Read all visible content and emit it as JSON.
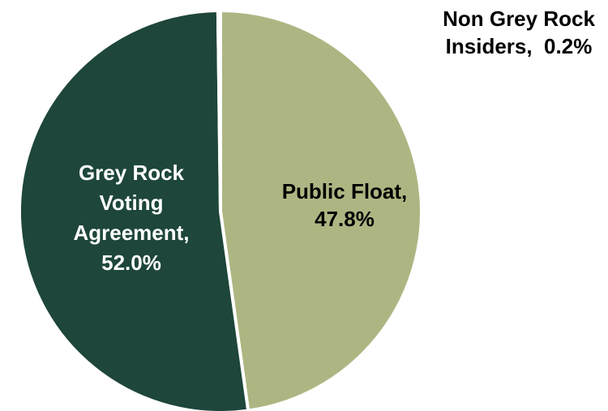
{
  "chart_data": {
    "type": "pie",
    "title": "",
    "slices": [
      {
        "label": "Public Float",
        "value": 47.8,
        "value_label": "47.8%",
        "color": "#adb682",
        "label_color": "#000000",
        "label_lines": [
          "Public Float,",
          "47.8%"
        ]
      },
      {
        "label": "Grey Rock Voting Agreement",
        "value": 52.0,
        "value_label": "52.0%",
        "color": "#1e463b",
        "label_color": "#ffffff",
        "label_lines": [
          "Grey Rock",
          "Voting",
          "Agreement,",
          "52.0%"
        ]
      },
      {
        "label": "Non Grey Rock Insiders",
        "value": 0.2,
        "value_label": "0.2%",
        "color": "#5d7f6f",
        "label_color": "#000000",
        "label_lines": [
          "Non Grey Rock",
          "Insiders,  0.2%"
        ]
      }
    ],
    "start_angle_deg": 0,
    "direction": "clockwise",
    "legend": "none"
  }
}
